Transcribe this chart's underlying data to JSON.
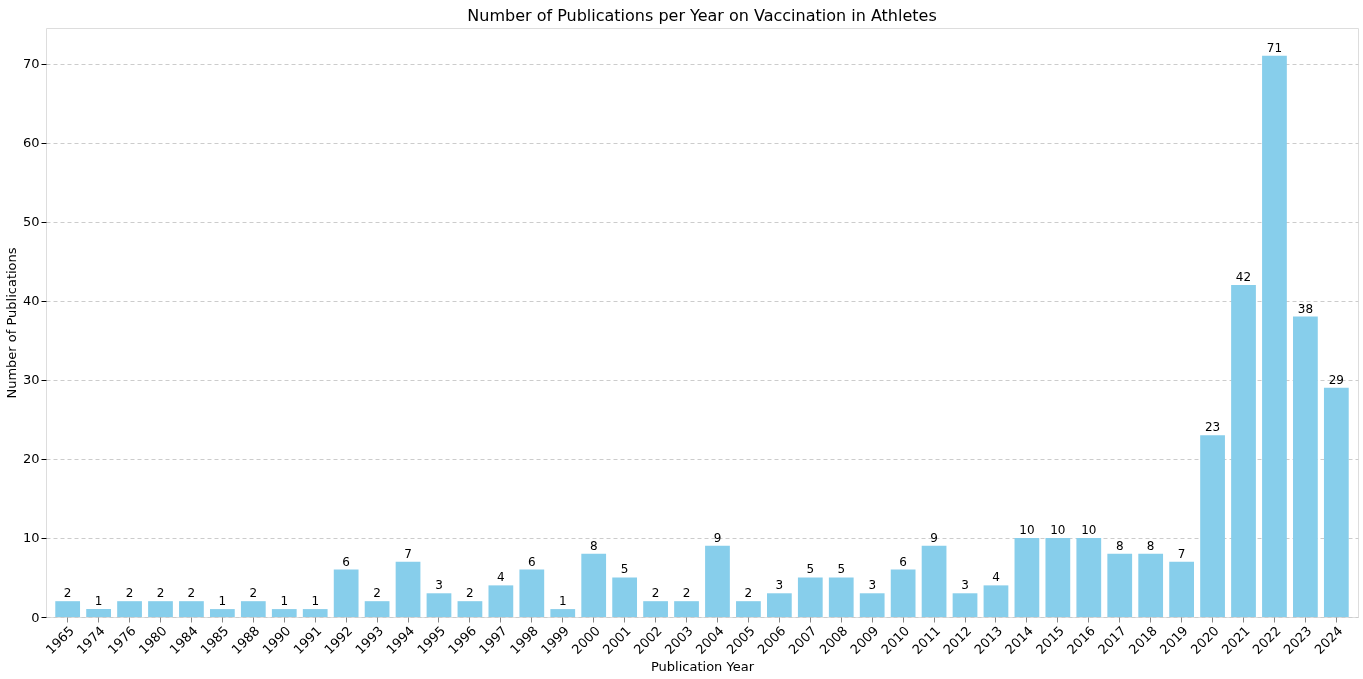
{
  "chart_data": {
    "type": "bar",
    "title": "Number of Publications per Year on Vaccination in Athletes",
    "xlabel": "Publication Year",
    "ylabel": "Number of Publications",
    "categories": [
      "1965",
      "1974",
      "1976",
      "1980",
      "1984",
      "1985",
      "1988",
      "1990",
      "1991",
      "1992",
      "1993",
      "1994",
      "1995",
      "1996",
      "1997",
      "1998",
      "1999",
      "2000",
      "2001",
      "2002",
      "2003",
      "2004",
      "2005",
      "2006",
      "2007",
      "2008",
      "2009",
      "2010",
      "2011",
      "2012",
      "2013",
      "2014",
      "2015",
      "2016",
      "2017",
      "2018",
      "2019",
      "2020",
      "2021",
      "2022",
      "2023",
      "2024"
    ],
    "values": [
      2,
      1,
      2,
      2,
      2,
      1,
      2,
      1,
      1,
      6,
      2,
      7,
      3,
      2,
      4,
      6,
      1,
      8,
      5,
      2,
      2,
      9,
      2,
      3,
      5,
      5,
      3,
      6,
      9,
      3,
      4,
      10,
      10,
      10,
      8,
      8,
      7,
      23,
      42,
      71,
      38,
      29
    ],
    "color": "#87ceeb",
    "ylim": [
      0,
      74.5
    ],
    "yticks": [
      0,
      10,
      20,
      30,
      40,
      50,
      60,
      70
    ],
    "grid": "y",
    "line_style": "dashed",
    "data_labels": true
  }
}
